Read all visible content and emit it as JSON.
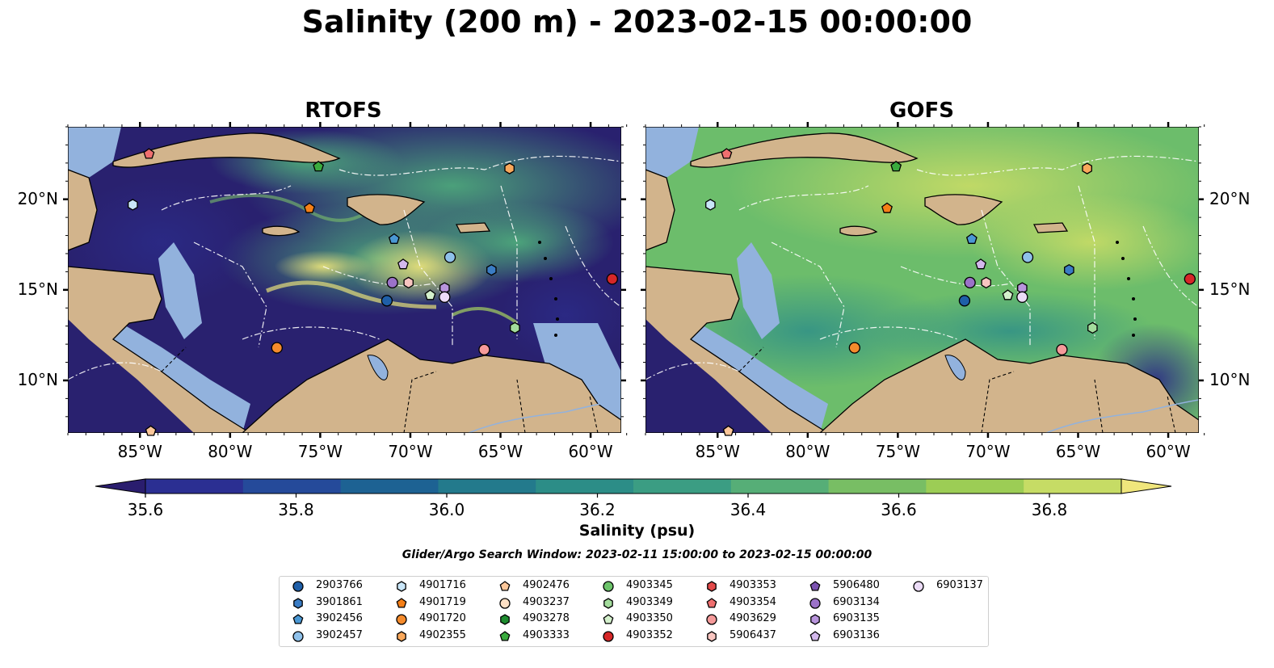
{
  "title": "Salinity (200 m) - 2023-02-15 00:00:00",
  "panels": [
    {
      "title": "RTOFS"
    },
    {
      "title": "GOFS"
    }
  ],
  "x_ticks": [
    "85°W",
    "80°W",
    "75°W",
    "70°W",
    "65°W",
    "60°W"
  ],
  "y_ticks": [
    "20°N",
    "15°N",
    "10°N"
  ],
  "colorbar": {
    "label": "Salinity (psu)",
    "ticks": [
      "35.6",
      "35.8",
      "36.0",
      "36.2",
      "36.4",
      "36.6",
      "36.8"
    ],
    "colors": [
      "#2a1d6e",
      "#2b2f92",
      "#254a9a",
      "#1d6293",
      "#237a8c",
      "#2c8d87",
      "#3b9d83",
      "#56ae77",
      "#78be64",
      "#9ccd55",
      "#c6dc65",
      "#f0e67c"
    ]
  },
  "search_window": "Glider/Argo Search Window: 2023-02-11 15:00:00 to 2023-02-15 00:00:00",
  "colors": {
    "land": "#d2b48c",
    "shelf": "#92b2dd"
  },
  "legend": [
    {
      "id": "2903766",
      "marker": "circle",
      "color": "#1f5fa8"
    },
    {
      "id": "3901861",
      "marker": "hexagon",
      "color": "#3a7cc4"
    },
    {
      "id": "3902456",
      "marker": "pentagon",
      "color": "#4a98d4"
    },
    {
      "id": "3902457",
      "marker": "circle",
      "color": "#8fc1ea"
    },
    {
      "id": "4901716",
      "marker": "hexagon",
      "color": "#c9e6f8"
    },
    {
      "id": "4901719",
      "marker": "pentagon",
      "color": "#f57f17"
    },
    {
      "id": "4901720",
      "marker": "circle",
      "color": "#f58b2c"
    },
    {
      "id": "4902355",
      "marker": "hexagon",
      "color": "#f9a85b"
    },
    {
      "id": "4902476",
      "marker": "pentagon",
      "color": "#fcc79a"
    },
    {
      "id": "4903237",
      "marker": "circle",
      "color": "#fde0c5"
    },
    {
      "id": "4903278",
      "marker": "hexagon",
      "color": "#1e8c2f"
    },
    {
      "id": "4903333",
      "marker": "pentagon",
      "color": "#3aab3e"
    },
    {
      "id": "4903345",
      "marker": "circle",
      "color": "#6cc36a"
    },
    {
      "id": "4903349",
      "marker": "hexagon",
      "color": "#a3dc9c"
    },
    {
      "id": "4903350",
      "marker": "pentagon",
      "color": "#d4f0cc"
    },
    {
      "id": "4903352",
      "marker": "circle",
      "color": "#d62728"
    },
    {
      "id": "4903353",
      "marker": "hexagon",
      "color": "#e34a4a"
    },
    {
      "id": "4903354",
      "marker": "pentagon",
      "color": "#ef6f6f"
    },
    {
      "id": "4903629",
      "marker": "circle",
      "color": "#f59a9a"
    },
    {
      "id": "5906437",
      "marker": "hexagon",
      "color": "#f8c5c0"
    },
    {
      "id": "5906480",
      "marker": "pentagon",
      "color": "#7b52b0"
    },
    {
      "id": "6903134",
      "marker": "circle",
      "color": "#9b72c8"
    },
    {
      "id": "6903135",
      "marker": "hexagon",
      "color": "#b894dc"
    },
    {
      "id": "6903136",
      "marker": "pentagon",
      "color": "#d3b8ec"
    },
    {
      "id": "6903137",
      "marker": "circle",
      "color": "#ecdcf7"
    }
  ],
  "float_positions": [
    {
      "id": "4903354",
      "lon": -84.5,
      "lat": 22.5
    },
    {
      "id": "4901716",
      "lon": -85.4,
      "lat": 19.7
    },
    {
      "id": "4903333",
      "lon": -75.1,
      "lat": 21.8
    },
    {
      "id": "4902355",
      "lon": -64.5,
      "lat": 21.7
    },
    {
      "id": "4901719",
      "lon": -75.6,
      "lat": 19.5
    },
    {
      "id": "3902456",
      "lon": -70.9,
      "lat": 17.8
    },
    {
      "id": "3902457",
      "lon": -67.8,
      "lat": 16.8
    },
    {
      "id": "3901861",
      "lon": -65.5,
      "lat": 16.1
    },
    {
      "id": "6903136",
      "lon": -70.4,
      "lat": 16.4
    },
    {
      "id": "6903134",
      "lon": -71.0,
      "lat": 15.4
    },
    {
      "id": "5906437",
      "lon": -70.1,
      "lat": 15.4
    },
    {
      "id": "4903350",
      "lon": -68.9,
      "lat": 14.7
    },
    {
      "id": "6903135",
      "lon": -68.1,
      "lat": 15.1
    },
    {
      "id": "6903137",
      "lon": -68.1,
      "lat": 14.6
    },
    {
      "id": "2903766",
      "lon": -71.3,
      "lat": 14.4
    },
    {
      "id": "4903352",
      "lon": -58.8,
      "lat": 15.6
    },
    {
      "id": "4903349",
      "lon": -64.2,
      "lat": 12.9
    },
    {
      "id": "4903629",
      "lon": -65.9,
      "lat": 11.7
    },
    {
      "id": "4901720",
      "lon": -77.4,
      "lat": 11.8
    },
    {
      "id": "4902476",
      "lon": -84.4,
      "lat": 7.2
    }
  ]
}
